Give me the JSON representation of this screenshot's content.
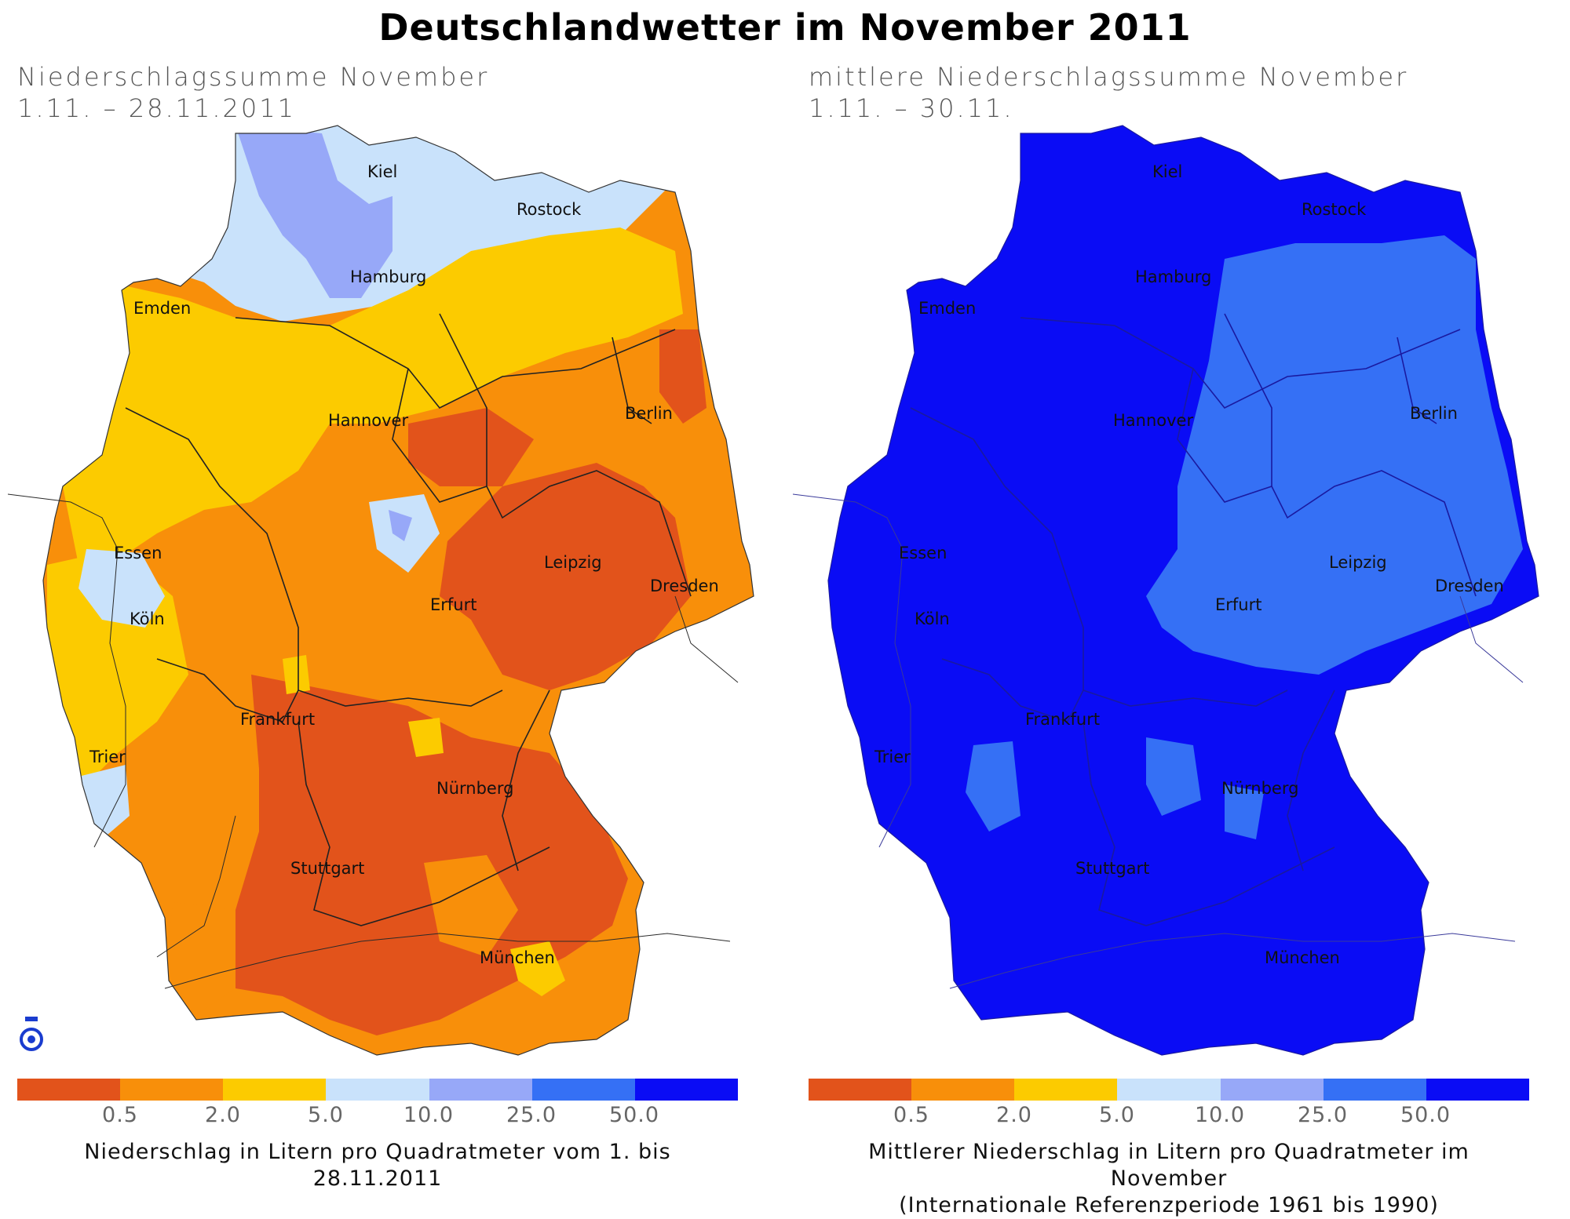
{
  "title": "Deutschlandwetter im November 2011",
  "left_panel": {
    "subtitle_line1": "Niederschlagssumme November",
    "subtitle_line2": "1.11. – 28.11.2011",
    "caption": "Niederschlag in Litern pro Quadratmeter vom 1. bis 28.11.2011"
  },
  "right_panel": {
    "subtitle_line1": "mittlere Niederschlagssumme November",
    "subtitle_line2": "1.11. – 30.11.",
    "caption_line1": "Mittlerer Niederschlag in Litern pro Quadratmeter im November",
    "caption_line2": "(Internationale Referenzperiode 1961 bis 1990)"
  },
  "cities": {
    "kiel": "Kiel",
    "rostock": "Rostock",
    "hamburg": "Hamburg",
    "emden": "Emden",
    "hannover": "Hannover",
    "berlin": "Berlin",
    "essen": "Essen",
    "leipzig": "Leipzig",
    "dresden": "Dresden",
    "koeln": "Köln",
    "erfurt": "Erfurt",
    "frankfurt": "Frankfurt",
    "trier": "Trier",
    "nuernberg": "Nürnberg",
    "stuttgart": "Stuttgart",
    "muenchen": "München"
  },
  "legend": {
    "thresholds": [
      "0.5",
      "2.0",
      "5.0",
      "10.0",
      "25.0",
      "50.0"
    ],
    "colors": [
      "#e2531b",
      "#f88f0a",
      "#fccb00",
      "#c9e2fb",
      "#97a8f8",
      "#3570f5",
      "#0a0cf5"
    ]
  },
  "colors": {
    "darkest_orange": "#e2531b",
    "orange": "#f88f0a",
    "yellow": "#fccb00",
    "light_blue": "#c9e2fb",
    "lavender": "#97a8f8",
    "mid_blue": "#3570f5",
    "deep_blue": "#0a0cf5"
  },
  "icons": {
    "logo": "dwd-logo-icon"
  }
}
